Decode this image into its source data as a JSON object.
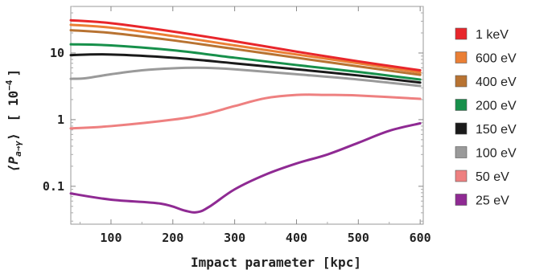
{
  "chart_data": {
    "type": "line",
    "xlabel": "Impact parameter [kpc]",
    "ylabel_main": "⟨P",
    "ylabel_sub": "a→γ",
    "ylabel_close": "⟩",
    "ylabel_unit_open": "[ 10",
    "ylabel_unit_exp": "−4",
    "ylabel_unit_close": "]",
    "xlim": [
      35,
      605
    ],
    "ylim": [
      0.027,
      50
    ],
    "yscale": "log",
    "x_ticks": [
      100,
      200,
      300,
      400,
      500,
      600
    ],
    "x_tick_labels": [
      "100",
      "200",
      "300",
      "400",
      "500",
      "600"
    ],
    "y_ticks": [
      0.1,
      1,
      10
    ],
    "y_tick_labels": [
      "0.1",
      "1",
      "10"
    ],
    "legend_position": "right",
    "series": [
      {
        "name": "1 keV",
        "color": "#e8262b",
        "x": [
          35,
          100,
          200,
          300,
          400,
          500,
          600
        ],
        "y": [
          31,
          28,
          21,
          15,
          10.5,
          7.5,
          5.5
        ]
      },
      {
        "name": "600 eV",
        "color": "#ea7f35",
        "x": [
          35,
          100,
          200,
          300,
          400,
          500,
          600
        ],
        "y": [
          26.5,
          24,
          18,
          13,
          9.5,
          7,
          5.1
        ]
      },
      {
        "name": "400 eV",
        "color": "#b87332",
        "x": [
          35,
          100,
          200,
          300,
          400,
          500,
          600
        ],
        "y": [
          22,
          20,
          15.5,
          11.5,
          8.5,
          6.3,
          4.7
        ]
      },
      {
        "name": "200 eV",
        "color": "#17904b",
        "x": [
          35,
          100,
          200,
          300,
          400,
          500,
          600
        ],
        "y": [
          13.5,
          13,
          11,
          8.5,
          6.6,
          5.2,
          4.0
        ]
      },
      {
        "name": "150 eV",
        "color": "#1a1a1a",
        "x": [
          35,
          100,
          200,
          300,
          400,
          500,
          600
        ],
        "y": [
          9.3,
          9.5,
          8.5,
          7,
          5.7,
          4.6,
          3.6
        ]
      },
      {
        "name": "100 eV",
        "color": "#9a9a9a",
        "x": [
          35,
          60,
          100,
          150,
          200,
          250,
          300,
          400,
          500,
          600
        ],
        "y": [
          4.1,
          4.2,
          4.8,
          5.5,
          5.9,
          6.0,
          5.7,
          4.8,
          4.0,
          3.2
        ]
      },
      {
        "name": "50 eV",
        "color": "#ee8080",
        "x": [
          35,
          100,
          200,
          250,
          300,
          350,
          400,
          450,
          500,
          600
        ],
        "y": [
          0.74,
          0.8,
          1.0,
          1.2,
          1.6,
          2.1,
          2.35,
          2.35,
          2.3,
          2.05
        ]
      },
      {
        "name": "25 eV",
        "color": "#8f2a93",
        "x": [
          35,
          100,
          180,
          220,
          240,
          260,
          300,
          350,
          400,
          450,
          500,
          550,
          600
        ],
        "y": [
          0.078,
          0.063,
          0.055,
          0.043,
          0.041,
          0.05,
          0.09,
          0.15,
          0.22,
          0.3,
          0.45,
          0.68,
          0.88
        ]
      }
    ]
  }
}
